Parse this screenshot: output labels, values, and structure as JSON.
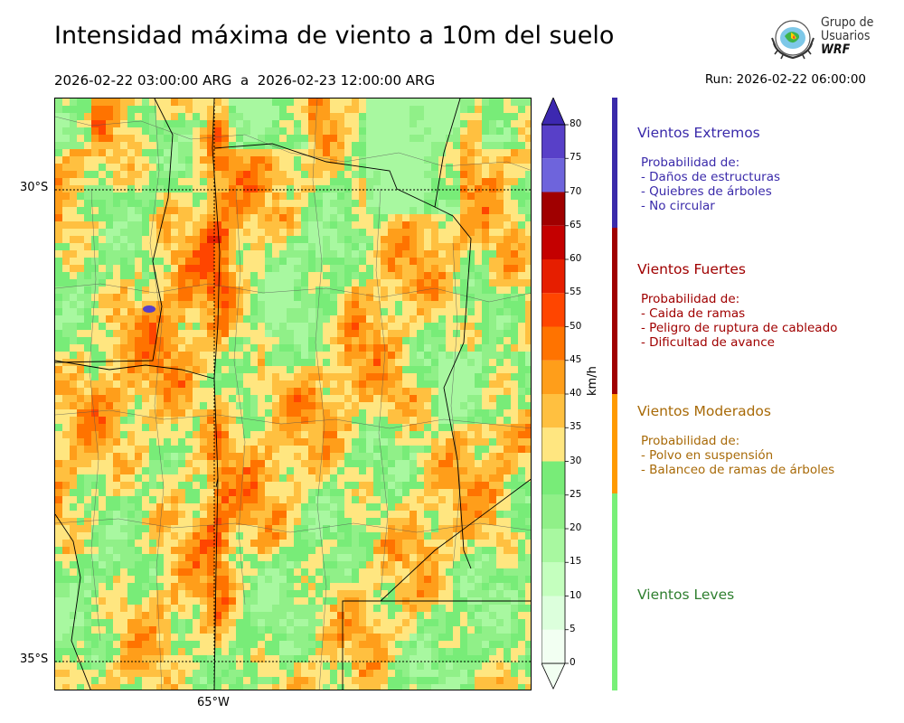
{
  "header": {
    "title": "Intensidad máxima de viento a 10m del suelo",
    "period_start": "2026-02-22 03:00:00 ARG",
    "period_sep": "a",
    "period_end": "2026-02-23 12:00:00 ARG",
    "run": "Run: 2026-02-22 06:00:00"
  },
  "logo": {
    "line1": "Grupo de",
    "line2": "Usuarios",
    "line3": "WRF"
  },
  "map": {
    "lat_labels": [
      "30°S",
      "35°S"
    ],
    "lon_labels": [
      "65°W"
    ],
    "lat_range": [
      -35.3,
      -29.0
    ],
    "lon_range": [
      -66.7,
      -61.7
    ]
  },
  "colorbar": {
    "unit": "km/h",
    "ticks": [
      0,
      5,
      10,
      15,
      20,
      25,
      30,
      35,
      40,
      45,
      50,
      55,
      60,
      65,
      70,
      75,
      80
    ],
    "tick_labels": [
      "0",
      "5",
      "10",
      "15",
      "20",
      "25",
      "30",
      "35",
      "40",
      "45",
      "50",
      "55",
      "60",
      "65",
      "70",
      "75",
      "80"
    ],
    "colors": [
      "#f2fff2",
      "#dcffdc",
      "#c4ffbe",
      "#a8f8a0",
      "#90f088",
      "#78ec78",
      "#ffe680",
      "#ffc040",
      "#ff9e1a",
      "#ff7300",
      "#ff4500",
      "#e61e00",
      "#c40000",
      "#a00000",
      "#6e64dc",
      "#5840c8",
      "#3c28b0"
    ]
  },
  "categories": [
    {
      "title": "Vientos Extremos",
      "color": "#3a2aaa",
      "bar_color": "#3a2aaa",
      "lines": [
        "Probabilidad de:",
        "- Daños de estructuras",
        "- Quiebres de árboles",
        "- No circular"
      ]
    },
    {
      "title": "Vientos Fuertes",
      "color": "#a00000",
      "bar_color": "#a00000",
      "lines": [
        "Probabilidad de:",
        "- Caida de ramas",
        "- Peligro de ruptura de cableado",
        "- Dificultad de avance"
      ]
    },
    {
      "title": "Vientos Moderados",
      "color": "#a86a08",
      "bar_color": "#ff9a00",
      "lines": [
        "Probabilidad de:",
        "- Polvo en suspensión",
        "- Balanceo de ramas de árboles"
      ]
    },
    {
      "title": "Vientos Leves",
      "color": "#2f7f2f",
      "bar_color": "#78f078",
      "lines": []
    }
  ]
}
